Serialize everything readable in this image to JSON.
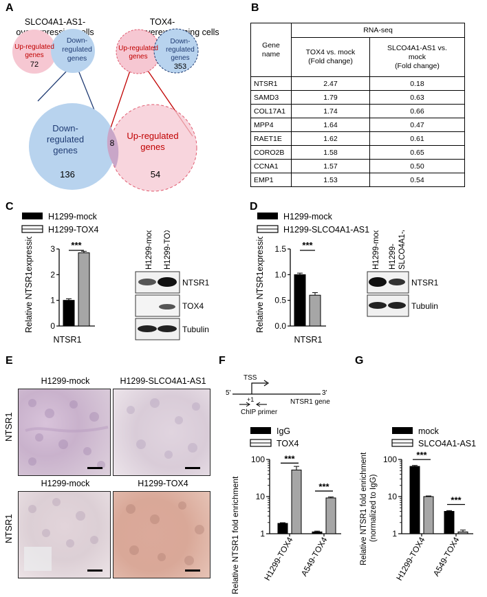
{
  "panels": [
    "A",
    "B",
    "C",
    "D",
    "E",
    "F",
    "G"
  ],
  "panelA": {
    "slco_title_1": "SLCO4A1-AS1-",
    "slco_title_2": "overexpressing  cells",
    "tox4_title_1": "TOX4-",
    "tox4_title_2": "overexpressing  cells",
    "up": [
      "Up-regulated",
      "genes"
    ],
    "down": [
      "Down-",
      "regulated",
      "genes"
    ],
    "slco_up_n": "72",
    "tox4_down_n": "353",
    "big_down": [
      "Down-",
      "regulated",
      "genes"
    ],
    "big_up": [
      "Up-regulated",
      "genes"
    ],
    "overlap_n": "8",
    "big_down_n": "136",
    "big_up_n": "54"
  },
  "panelB": {
    "col_gene": [
      "Gene",
      "name"
    ],
    "col_group": "RNA-seq",
    "col_tox4": [
      "TOX4 vs. mock",
      "(Fold change)"
    ],
    "col_slco": [
      "SLCO4A1-AS1 vs.",
      "mock",
      "(Fold change)"
    ],
    "rows": [
      {
        "gene": "NTSR1",
        "tox4": "2.47",
        "slco": "0.18"
      },
      {
        "gene": "SAMD3",
        "tox4": "1.79",
        "slco": "0.63"
      },
      {
        "gene": "COL17A1",
        "tox4": "1.74",
        "slco": "0.66"
      },
      {
        "gene": "MPP4",
        "tox4": "1.64",
        "slco": "0.47"
      },
      {
        "gene": "RAET1E",
        "tox4": "1.62",
        "slco": "0.61"
      },
      {
        "gene": "CORO2B",
        "tox4": "1.58",
        "slco": "0.65"
      },
      {
        "gene": "CCNA1",
        "tox4": "1.57",
        "slco": "0.50"
      },
      {
        "gene": "EMP1",
        "tox4": "1.53",
        "slco": "0.54"
      }
    ]
  },
  "panelC": {
    "legend": [
      "H1299-mock",
      "H1299-TOX4"
    ],
    "ylabel": "Relative NTSR1expression",
    "xlabel": "NTSR1",
    "sig": "***",
    "blot_lanes": [
      "H1299-mock",
      "H1299-TOX4"
    ],
    "blot_rows": [
      "NTSR1",
      "TOX4",
      "Tubulin"
    ]
  },
  "panelD": {
    "legend": [
      "H1299-mock",
      "H1299-SLCO4A1-AS1"
    ],
    "ylabel": "Relative NTSR1expression",
    "xlabel": "NTSR1",
    "sig": "***",
    "blot_lane1": "H1299-mock",
    "blot_lane2": [
      "H1299-",
      "SLCO4A1-AS1"
    ],
    "blot_rows": [
      "NTSR1",
      "Tubulin"
    ]
  },
  "panelE": {
    "titles": [
      "H1299-mock",
      "H1299-SLCO4A1-AS1",
      "H1299-mock",
      "H1299-TOX4"
    ],
    "row_label": "NTSR1"
  },
  "panelF": {
    "tss": "TSS",
    "five": "5'",
    "three": "3'",
    "plus1": "+1",
    "gene": "NTSR1 gene",
    "primer": "ChIP primer",
    "legend": [
      "IgG",
      "TOX4"
    ],
    "ylabel": "Relative NTSR1 fold enrichment",
    "sig": "***"
  },
  "panelG": {
    "legend": [
      "mock",
      "SLCO4A1-AS1"
    ],
    "ylabel_1": "Relative NTSR1 fold enrichment",
    "ylabel_2": "(normalized to IgG)",
    "sig": "***"
  },
  "chart_data": [
    {
      "type": "bar",
      "panel": "C",
      "categories": [
        "NTSR1"
      ],
      "series": [
        {
          "name": "H1299-mock",
          "values": [
            1.0
          ],
          "color": "#000000"
        },
        {
          "name": "H1299-TOX4",
          "values": [
            2.85
          ],
          "color": "#a6a6a6"
        }
      ],
      "yticks": [
        "0",
        "1",
        "2",
        "3"
      ],
      "ylim": [
        0,
        3
      ]
    },
    {
      "type": "bar",
      "panel": "D",
      "categories": [
        "NTSR1"
      ],
      "series": [
        {
          "name": "H1299-mock",
          "values": [
            1.0
          ],
          "color": "#000000"
        },
        {
          "name": "H1299-SLCO4A1-AS1",
          "values": [
            0.6
          ],
          "color": "#a6a6a6"
        }
      ],
      "yticks": [
        "0.0",
        "0.5",
        "1.0",
        "1.5"
      ],
      "ylim": [
        0,
        1.5
      ]
    },
    {
      "type": "bar",
      "panel": "F",
      "log_scale": true,
      "categories": [
        "H1299-TOX4",
        "A549-TOX4"
      ],
      "series": [
        {
          "name": "IgG",
          "values": [
            1.9,
            1.12
          ],
          "color": "#000000"
        },
        {
          "name": "TOX4",
          "values": [
            52,
            9.2
          ],
          "color": "#a6a6a6"
        }
      ],
      "yticks": [
        "1",
        "10",
        "100"
      ],
      "ylim": [
        1,
        100
      ]
    },
    {
      "type": "bar",
      "panel": "G",
      "log_scale": true,
      "categories": [
        "H1299-TOX4",
        "A549-TOX4"
      ],
      "series": [
        {
          "name": "mock",
          "values": [
            65,
            4.0
          ],
          "color": "#000000"
        },
        {
          "name": "SLCO4A1-AS1",
          "values": [
            10,
            1.12
          ],
          "color": "#a6a6a6"
        }
      ],
      "yticks": [
        "1",
        "10",
        "100"
      ],
      "ylim": [
        1,
        100
      ]
    }
  ]
}
